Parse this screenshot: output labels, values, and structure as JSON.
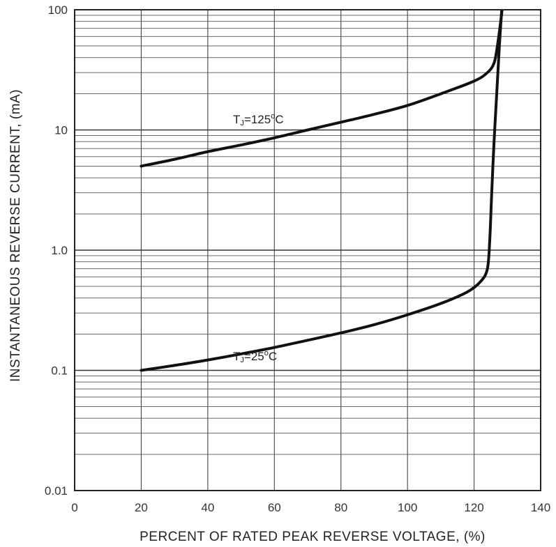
{
  "chart_data": {
    "type": "line",
    "xlabel": "PERCENT OF RATED PEAK REVERSE VOLTAGE, (%)",
    "ylabel": "INSTANTANEOUS REVERSE CURRENT, (mA)",
    "xlim": [
      0,
      140
    ],
    "ylim": [
      0.01,
      100
    ],
    "yscale": "log",
    "grid": true,
    "x_ticks": [
      0,
      20,
      40,
      60,
      80,
      100,
      120,
      140
    ],
    "x_tick_labels": [
      "0",
      "20",
      "40",
      "60",
      "80",
      "100",
      "120",
      "140"
    ],
    "y_ticks": [
      0.01,
      0.1,
      1.0,
      10,
      100
    ],
    "y_tick_labels": [
      "0.01",
      "0.1",
      "1.0",
      "10",
      "100"
    ],
    "series": [
      {
        "annotation_main": "T",
        "annotation_sub": "J",
        "annotation_rest": "=125",
        "annotation_sup": "o",
        "annotation_unit": "C",
        "x": [
          20,
          30,
          40,
          50,
          60,
          70,
          80,
          90,
          100,
          110,
          120,
          124,
          126,
          127,
          128,
          128.6
        ],
        "y": [
          5.0,
          5.7,
          6.6,
          7.5,
          8.6,
          10.0,
          11.6,
          13.5,
          16.0,
          20.0,
          25.5,
          30.0,
          36.0,
          50.0,
          80.0,
          110.0
        ]
      },
      {
        "annotation_main": "T",
        "annotation_sub": "J",
        "annotation_rest": "=25",
        "annotation_sup": "o",
        "annotation_unit": "C",
        "x": [
          20,
          30,
          40,
          50,
          60,
          70,
          80,
          90,
          100,
          110,
          118,
          122,
          124,
          124.7,
          125.3,
          126,
          126.8,
          127.6,
          128.4
        ],
        "y": [
          0.1,
          0.11,
          0.122,
          0.137,
          0.155,
          0.178,
          0.205,
          0.24,
          0.29,
          0.36,
          0.45,
          0.55,
          0.7,
          1.2,
          3.0,
          8.0,
          20.0,
          50.0,
          110.0
        ]
      }
    ]
  }
}
